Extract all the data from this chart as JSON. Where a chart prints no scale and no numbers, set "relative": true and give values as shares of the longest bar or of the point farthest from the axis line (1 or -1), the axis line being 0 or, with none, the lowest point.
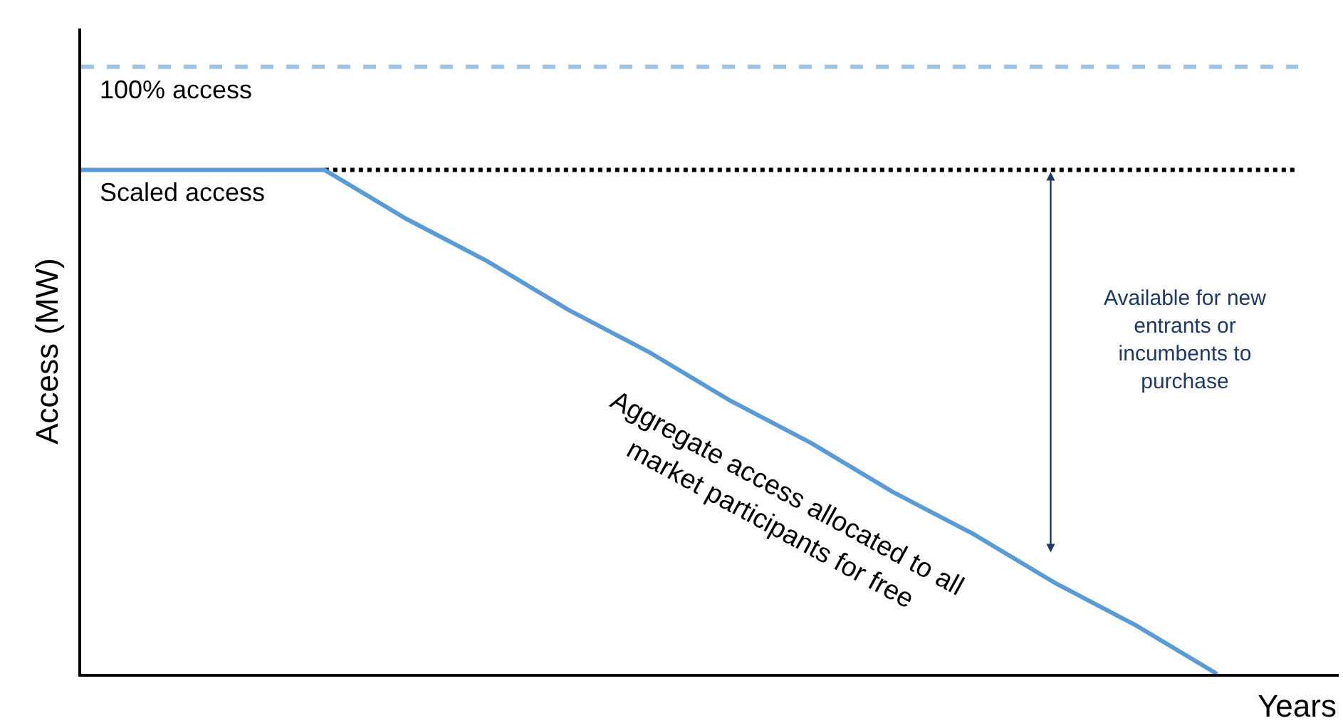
{
  "chart_data": {
    "type": "line",
    "relative": true,
    "xlabel": "Years",
    "ylabel": "Access (MW)",
    "categories": [
      null,
      null,
      null,
      null,
      null,
      null,
      null,
      null,
      null,
      null,
      null,
      null,
      null,
      null,
      null,
      null
    ],
    "series": [
      {
        "color": "#9dc3e6",
        "line_style": "dashed",
        "values": [
          1,
          1,
          1,
          1,
          1,
          1,
          1,
          1,
          1,
          1,
          1,
          1,
          1,
          1,
          1,
          1
        ]
      },
      {
        "color": "#000000",
        "line_style": "dotted",
        "values": [
          null,
          null,
          null,
          0.83,
          0.83,
          0.83,
          0.83,
          0.83,
          0.83,
          0.83,
          0.83,
          0.83,
          0.83,
          0.83,
          0.83,
          0.83
        ]
      },
      {
        "color": "#5b9bd5",
        "line_style": "solid",
        "values": [
          0.83,
          0.83,
          0.83,
          0.83,
          0.75,
          0.68,
          0.6,
          0.53,
          0.45,
          0.38,
          0.3,
          0.23,
          0.15,
          0.08,
          0,
          null
        ]
      }
    ],
    "annotations": [
      "100% access",
      "Scaled access",
      "Aggregate access allocated to all\nmarket participants for free",
      "Available for new\nentrants or\nincumbents to\npurchase"
    ],
    "marker": "none"
  }
}
